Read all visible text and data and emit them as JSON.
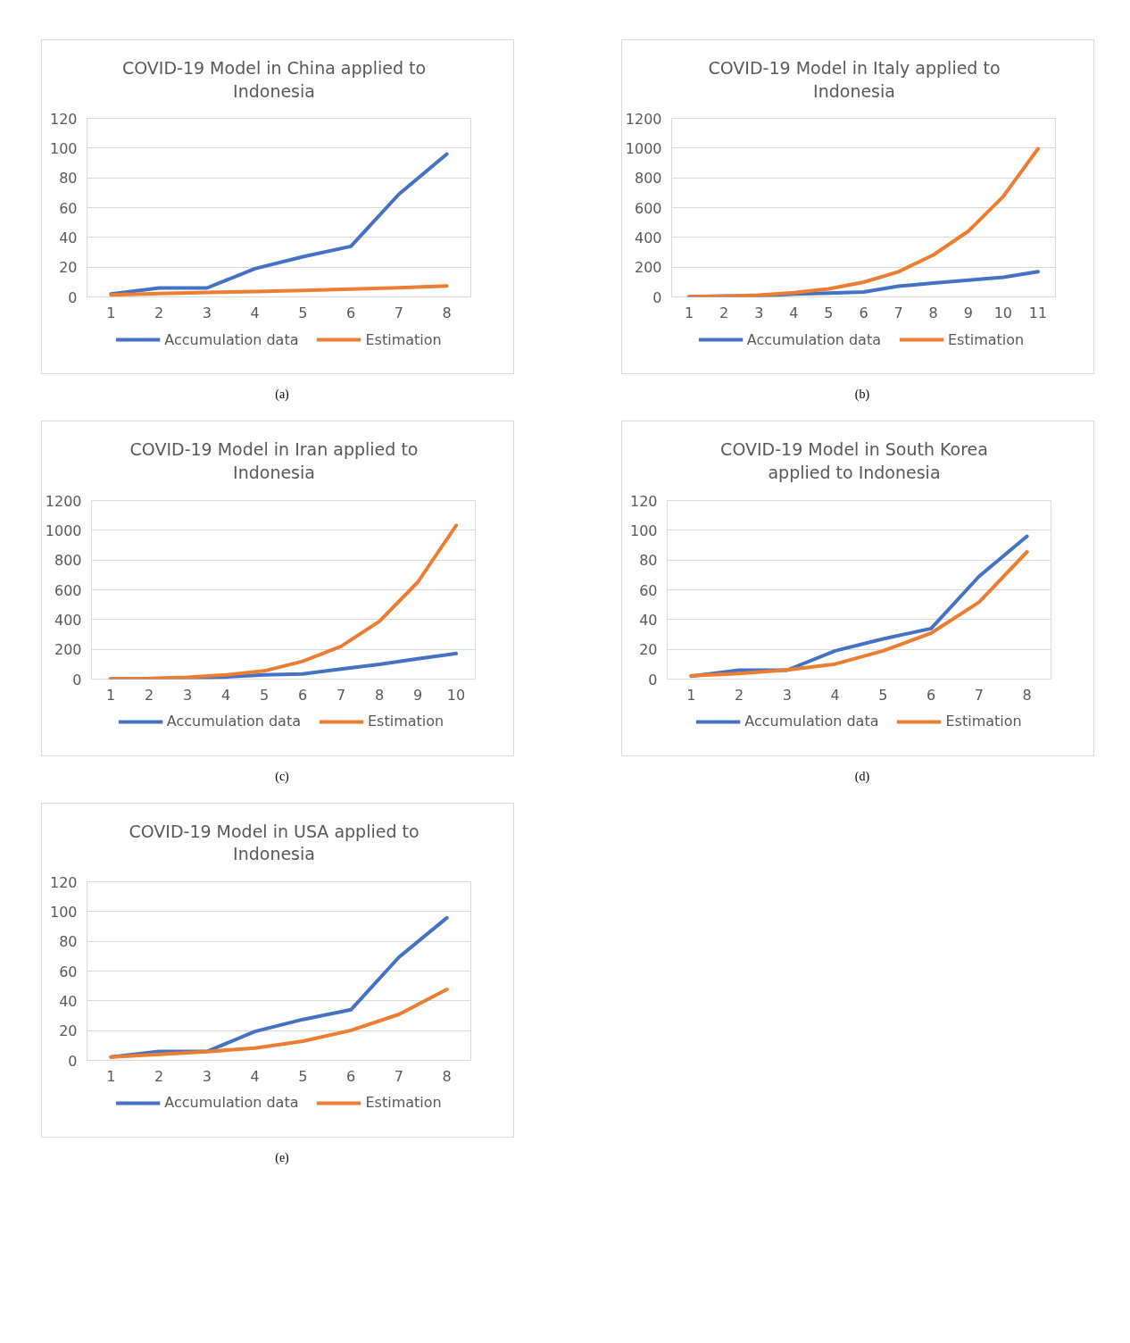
{
  "chart_data": [
    {
      "type": "line",
      "title": "COVID-19 Model in China applied to Indonesia",
      "categories": [
        "1",
        "2",
        "3",
        "4",
        "5",
        "6",
        "7",
        "8"
      ],
      "ylim": [
        0,
        120
      ],
      "yticks": [
        0,
        20,
        40,
        60,
        80,
        100,
        120
      ],
      "grid": "y",
      "legend": "bottom",
      "annotations": [
        "(a)"
      ],
      "series": [
        {
          "name": "Accumulation data",
          "color": "#4472c4",
          "values": [
            2,
            6,
            6,
            19,
            27,
            34,
            69,
            96
          ]
        },
        {
          "name": "Estimation",
          "color": "#ed7d31",
          "values": [
            1.4,
            2.2,
            3,
            3.6,
            4.3,
            5.2,
            6.2,
            7.4
          ]
        }
      ]
    },
    {
      "type": "line",
      "title": "COVID-19 Model in Italy applied to Indonesia",
      "categories": [
        "1",
        "2",
        "3",
        "4",
        "5",
        "6",
        "7",
        "8",
        "9",
        "10",
        "11"
      ],
      "ylim": [
        0,
        1200
      ],
      "yticks": [
        0,
        200,
        400,
        600,
        800,
        1000,
        1200
      ],
      "grid": "y",
      "legend": "bottom",
      "annotations": [
        "(b)"
      ],
      "series": [
        {
          "name": "Accumulation data",
          "color": "#4472c4",
          "values": [
            2,
            6,
            6,
            19,
            25,
            33,
            72,
            93,
            113,
            132,
            169
          ]
        },
        {
          "name": "Estimation",
          "color": "#ed7d31",
          "values": [
            2,
            4,
            12,
            29,
            54,
            99,
            169,
            282,
            441,
            674,
            996
          ]
        }
      ]
    },
    {
      "type": "line",
      "title": "COVID-19 Model in Iran applied to Indonesia",
      "categories": [
        "1",
        "2",
        "3",
        "4",
        "5",
        "6",
        "7",
        "8",
        "9",
        "10"
      ],
      "ylim": [
        0,
        1200
      ],
      "yticks": [
        0,
        200,
        400,
        600,
        800,
        1000,
        1200
      ],
      "grid": "y",
      "legend": "bottom",
      "annotations": [
        "(c)"
      ],
      "series": [
        {
          "name": "Accumulation data",
          "color": "#4472c4",
          "values": [
            2,
            2,
            4,
            14,
            29,
            35,
            67,
            99,
            137,
            172
          ]
        },
        {
          "name": "Estimation",
          "color": "#ed7d31",
          "values": [
            2,
            4,
            12,
            28,
            55,
            119,
            220,
            388,
            651,
            1032
          ]
        }
      ]
    },
    {
      "type": "line",
      "title": "COVID-19 Model in South Korea applied to Indonesia",
      "categories": [
        "1",
        "2",
        "3",
        "4",
        "5",
        "6",
        "7",
        "8"
      ],
      "ylim": [
        0,
        120
      ],
      "yticks": [
        0,
        20,
        40,
        60,
        80,
        100,
        120
      ],
      "grid": "y",
      "legend": "bottom",
      "annotations": [
        "(d)"
      ],
      "series": [
        {
          "name": "Accumulation data",
          "color": "#4472c4",
          "values": [
            2,
            6,
            6,
            19,
            27,
            34,
            69,
            96
          ]
        },
        {
          "name": "Estimation",
          "color": "#ed7d31",
          "values": [
            2.2,
            3.8,
            6.1,
            10.1,
            19,
            30.9,
            51.7,
            85.5
          ]
        }
      ]
    },
    {
      "type": "line",
      "title": "COVID-19 Model in USA applied to Indonesia",
      "categories": [
        "1",
        "2",
        "3",
        "4",
        "5",
        "6",
        "7",
        "8"
      ],
      "ylim": [
        0,
        120
      ],
      "yticks": [
        0,
        20,
        40,
        60,
        80,
        100,
        120
      ],
      "grid": "y",
      "legend": "bottom",
      "annotations": [
        "(e)"
      ],
      "series": [
        {
          "name": "Accumulation data",
          "color": "#4472c4",
          "values": [
            2.2,
            6,
            6,
            19.4,
            27.5,
            34,
            69.3,
            95.8
          ]
        },
        {
          "name": "Estimation",
          "color": "#ed7d31",
          "values": [
            2.2,
            4,
            5.9,
            8.3,
            12.9,
            20.2,
            30.9,
            47.7
          ]
        }
      ]
    }
  ]
}
